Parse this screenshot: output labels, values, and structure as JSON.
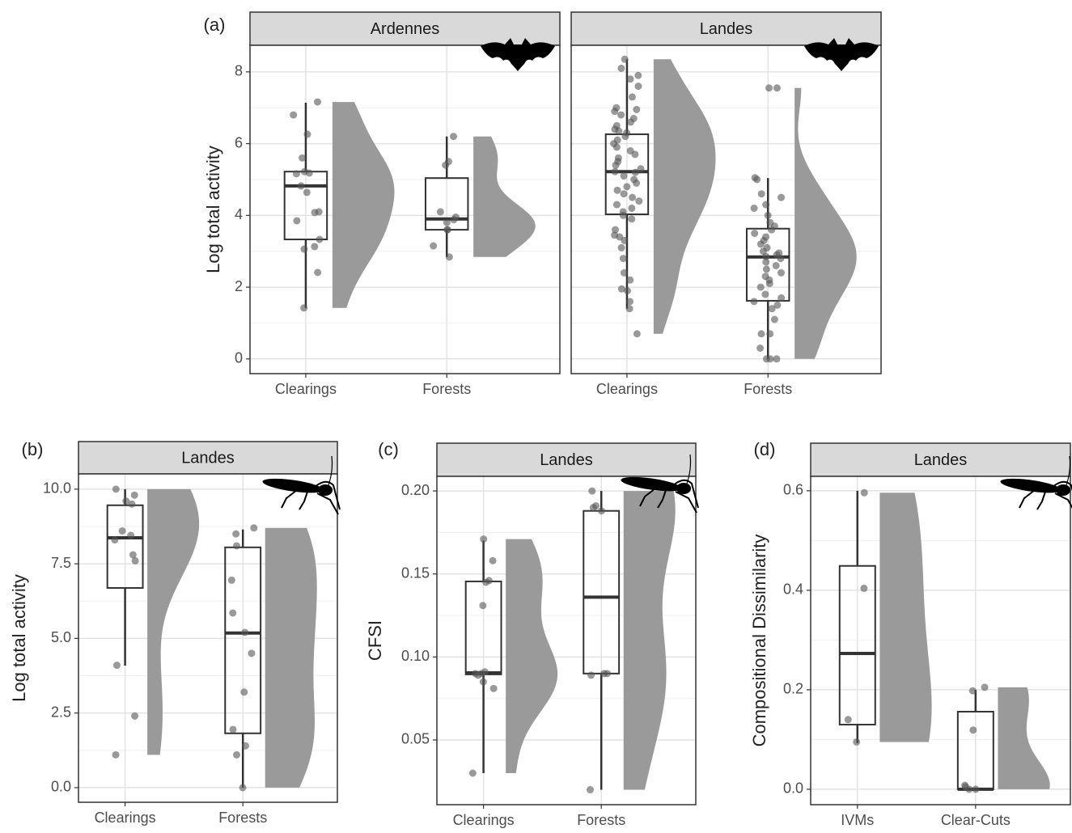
{
  "chart_data": [
    {
      "type": "raincloud",
      "label": "(a)",
      "ylabel": "Log total activity",
      "ylim": [
        -0.41,
        8.74
      ],
      "yticks": [
        0,
        2,
        4,
        6,
        8
      ],
      "violin_color": "#9a9a9a",
      "point_color": "#555555",
      "facets": [
        {
          "title": "Ardennes",
          "categories": [
            "Clearings",
            "Forests"
          ],
          "boxes": [
            {
              "min": 1.42,
              "q1": 3.33,
              "median": 4.82,
              "q3": 5.22,
              "max": 7.14
            },
            {
              "min": 2.84,
              "q1": 3.6,
              "median": 3.9,
              "q3": 5.04,
              "max": 6.2
            }
          ],
          "points": [
            [
              7.16,
              6.8,
              6.26,
              5.6,
              5.22,
              5.18,
              5.16,
              4.82,
              4.64,
              4.1,
              4.08,
              3.85,
              3.33,
              3.13,
              3.06,
              2.41,
              1.42
            ],
            [
              6.2,
              5.5,
              5.4,
              4.1,
              3.95,
              3.88,
              3.8,
              3.6,
              3.6,
              3.15,
              2.84
            ]
          ]
        },
        {
          "title": "Landes",
          "categories": [
            "Clearings",
            "Forests"
          ],
          "boxes": [
            {
              "min": 1.4,
              "q1": 4.03,
              "median": 5.22,
              "q3": 6.26,
              "max": 8.35
            },
            {
              "min": 0,
              "q1": 1.62,
              "median": 2.84,
              "q3": 3.63,
              "max": 5.04
            }
          ],
          "points": [
            [
              8.35,
              8.1,
              7.9,
              7.8,
              7.6,
              7.3,
              7.0,
              6.95,
              6.9,
              6.8,
              6.7,
              6.6,
              6.5,
              6.4,
              6.35,
              6.3,
              6.2,
              6.1,
              6.0,
              5.9,
              5.8,
              5.7,
              5.6,
              5.5,
              5.4,
              5.3,
              5.22,
              5.2,
              5.1,
              5.0,
              4.9,
              4.8,
              4.7,
              4.6,
              4.5,
              4.4,
              4.3,
              4.2,
              4.1,
              4.0,
              3.9,
              3.6,
              3.45,
              3.4,
              3.3,
              3.1,
              2.8,
              2.4,
              2.2,
              1.95,
              1.9,
              1.6,
              1.4,
              0.7
            ],
            [
              7.55,
              7.55,
              5.05,
              5.0,
              4.6,
              4.5,
              4.3,
              4.2,
              4.0,
              3.8,
              3.7,
              3.6,
              3.5,
              3.4,
              3.3,
              3.2,
              3.1,
              3.0,
              2.95,
              2.9,
              2.85,
              2.8,
              2.7,
              2.6,
              2.5,
              2.4,
              2.3,
              2.2,
              2.1,
              2.0,
              1.8,
              1.7,
              1.6,
              1.5,
              1.4,
              1.1,
              0.7,
              0.7,
              0.3,
              0,
              0,
              0
            ]
          ]
        }
      ]
    },
    {
      "type": "raincloud",
      "label": "(b)",
      "ylabel": "Log total activity",
      "ylim": [
        -0.49,
        10.51
      ],
      "yticks": [
        {
          "value": 0,
          "label": "0.0"
        },
        2.5,
        {
          "value": 5,
          "label": "5.0"
        },
        7.5,
        {
          "value": 10,
          "label": "10.0"
        }
      ],
      "violin_color": "#9a9a9a",
      "point_color": "#555555",
      "facets": [
        {
          "title": "Landes",
          "categories": [
            "Clearings",
            "Forests"
          ],
          "boxes": [
            {
              "min": 4.09,
              "q1": 6.69,
              "median": 8.37,
              "q3": 9.46,
              "max": 10
            },
            {
              "min": 0,
              "q1": 1.82,
              "median": 5.18,
              "q3": 8.05,
              "max": 8.65
            }
          ],
          "points": [
            [
              10,
              9.8,
              9.6,
              9.5,
              8.6,
              8.45,
              8.3,
              7.8,
              7.6,
              4.1,
              2.4,
              1.1
            ],
            [
              8.7,
              8.5,
              8.1,
              6.95,
              5.85,
              5.2,
              4.5,
              3.2,
              1.95,
              1.4,
              1.1,
              0
            ]
          ]
        }
      ]
    },
    {
      "type": "raincloud",
      "label": "(c)",
      "ylabel": "CFSI",
      "ylim": [
        0.011,
        0.2088
      ],
      "yticks": [
        0.05,
        {
          "value": 0.1,
          "label": "0.10"
        },
        0.15,
        {
          "value": 0.2,
          "label": "0.20"
        }
      ],
      "violin_color": "#9a9a9a",
      "point_color": "#555555",
      "facets": [
        {
          "title": "Landes",
          "categories": [
            "Clearings",
            "Forests"
          ],
          "boxes": [
            {
              "min": 0.03,
              "q1": 0.0895,
              "median": 0.0904,
              "q3": 0.1455,
              "max": 0.17
            },
            {
              "min": 0.02,
              "q1": 0.09,
              "median": 0.136,
              "q3": 0.188,
              "max": 0.2
            }
          ],
          "points": [
            [
              0.171,
              0.158,
              0.146,
              0.145,
              0.131,
              0.091,
              0.09,
              0.09,
              0.089,
              0.085,
              0.081,
              0.03
            ],
            [
              0.2,
              0.191,
              0.19,
              0.188,
              0.09,
              0.09,
              0.089,
              0.02
            ]
          ]
        }
      ]
    },
    {
      "type": "raincloud",
      "label": "(d)",
      "ylabel": "Compositional Dissimilarity",
      "ylim": [
        -0.031,
        0.629
      ],
      "yticks": [
        {
          "value": 0,
          "label": "0.0"
        },
        0.2,
        0.4,
        0.6
      ],
      "violin_color": "#9a9a9a",
      "point_color": "#555555",
      "facets": [
        {
          "title": "Landes",
          "categories": [
            "IVMs",
            "Clear-Cuts"
          ],
          "boxes": [
            {
              "min": 0.093,
              "q1": 0.13,
              "median": 0.273,
              "q3": 0.449,
              "max": 0.6
            },
            {
              "min": 0,
              "q1": 0,
              "median": 0,
              "q3": 0.156,
              "max": 0.2
            }
          ],
          "points": [
            [
              0.596,
              0.404,
              0.14,
              0.095
            ],
            [
              0.205,
              0.198,
              0.119,
              0.008,
              0.005,
              0,
              0
            ]
          ]
        }
      ]
    }
  ]
}
